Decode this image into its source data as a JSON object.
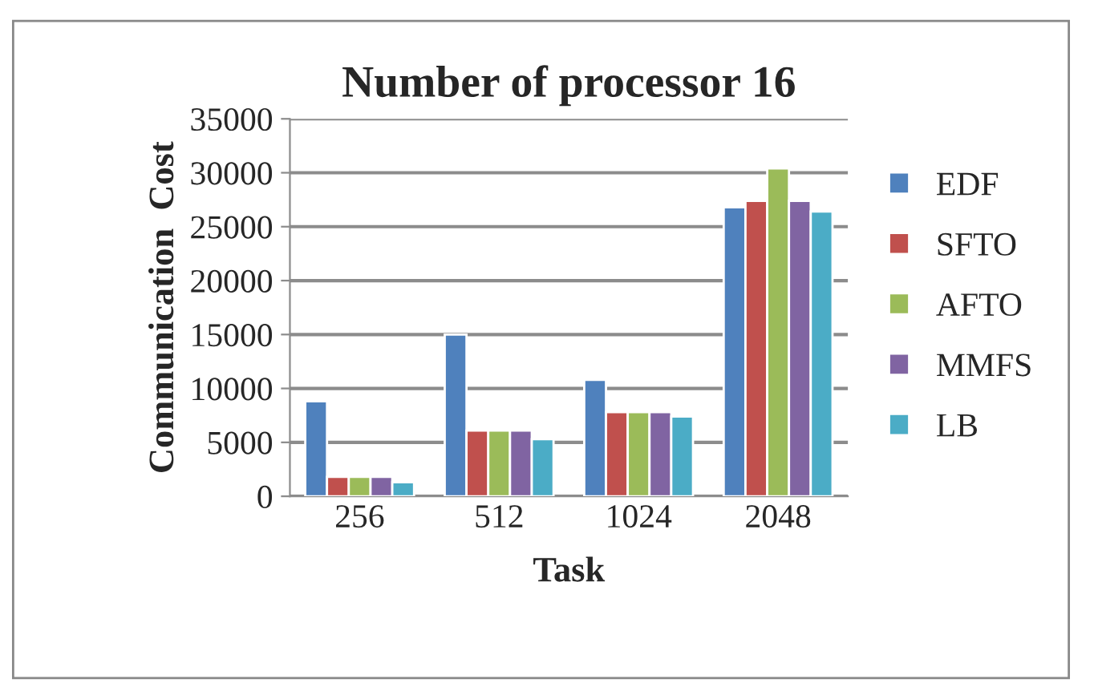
{
  "chart_data": {
    "type": "bar",
    "title": "Number of processor 16",
    "xlabel": "Task",
    "ylabel": "Communication  Cost",
    "categories": [
      "256",
      "512",
      "1024",
      "2048"
    ],
    "series": [
      {
        "name": "EDF",
        "color": "#4f81bd",
        "values": [
          8800,
          15000,
          10800,
          26800
        ]
      },
      {
        "name": "SFTO",
        "color": "#c0504d",
        "values": [
          1800,
          6100,
          7800,
          27400
        ]
      },
      {
        "name": "AFTO",
        "color": "#9bbb59",
        "values": [
          1800,
          6100,
          7800,
          30400
        ]
      },
      {
        "name": "MMFS",
        "color": "#8064a2",
        "values": [
          1800,
          6100,
          7800,
          27400
        ]
      },
      {
        "name": "LB",
        "color": "#4bacc6",
        "values": [
          1300,
          5300,
          7400,
          26400
        ]
      }
    ],
    "ylim": [
      0,
      35000
    ],
    "yticks": [
      0,
      5000,
      10000,
      15000,
      20000,
      25000,
      30000,
      35000
    ],
    "grid": "y",
    "legend": "right"
  }
}
